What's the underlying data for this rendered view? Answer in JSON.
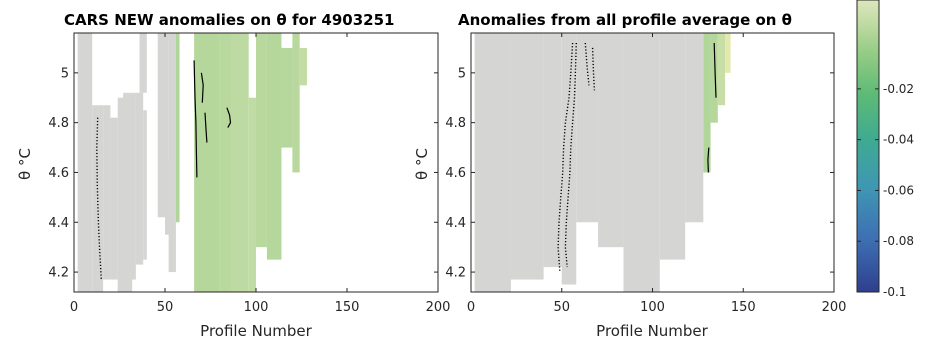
{
  "chart_data": [
    {
      "type": "heatmap",
      "title": "CARS NEW anomalies on θ for 4903251",
      "xlabel": "Profile Number",
      "ylabel": "θ °C",
      "xlim": [
        0,
        200
      ],
      "ylim": [
        4.12,
        5.16
      ],
      "xticks": [
        0,
        50,
        100,
        150,
        200
      ],
      "xtick_labels": [
        "0",
        "50",
        "100",
        "150",
        "200"
      ],
      "yticks": [
        4.2,
        4.4,
        4.6,
        4.8,
        5.0
      ],
      "ytick_labels": [
        "4.2",
        "4.4",
        "4.6",
        "4.8",
        "5"
      ],
      "grid": false,
      "bands": [
        {
          "x0": 2,
          "x1": 10,
          "ytop": 5.16,
          "ybot": 4.12,
          "value": 0.0
        },
        {
          "x0": 10,
          "x1": 16,
          "ytop": 4.87,
          "ybot": 4.12,
          "value": 0.0
        },
        {
          "x0": 16,
          "x1": 20,
          "ytop": 4.87,
          "ybot": 4.17,
          "value": 0.0
        },
        {
          "x0": 20,
          "x1": 24,
          "ytop": 4.82,
          "ybot": 4.17,
          "value": 0.0
        },
        {
          "x0": 24,
          "x1": 32,
          "ytop": 4.9,
          "ybot": 4.12,
          "value": 0.0
        },
        {
          "x0": 27,
          "x1": 34,
          "ytop": 4.92,
          "ybot": 4.17,
          "value": 0.0
        },
        {
          "x0": 34,
          "x1": 38,
          "ytop": 4.92,
          "ybot": 4.23,
          "value": 0.0
        },
        {
          "x0": 38,
          "x1": 40,
          "ytop": 4.85,
          "ybot": 4.25,
          "value": 0.0
        },
        {
          "x0": 36,
          "x1": 40,
          "ytop": 5.16,
          "ybot": 4.92,
          "value": 0.0
        },
        {
          "x0": 46,
          "x1": 52,
          "ytop": 5.16,
          "ybot": 4.42,
          "value": 0.0
        },
        {
          "x0": 50,
          "x1": 54,
          "ytop": 4.65,
          "ybot": 4.35,
          "value": 0.0
        },
        {
          "x0": 52,
          "x1": 56,
          "ytop": 5.16,
          "ybot": 4.2,
          "value": 0.0
        },
        {
          "x0": 56,
          "x1": 58,
          "ytop": 5.16,
          "ybot": 4.4,
          "value": 0.002
        },
        {
          "x0": 66,
          "x1": 80,
          "ytop": 5.16,
          "ybot": 4.12,
          "value": 0.003
        },
        {
          "x0": 80,
          "x1": 90,
          "ytop": 5.16,
          "ybot": 4.12,
          "value": 0.004
        },
        {
          "x0": 86,
          "x1": 96,
          "ytop": 5.16,
          "ybot": 4.12,
          "value": 0.005
        },
        {
          "x0": 96,
          "x1": 100,
          "ytop": 4.9,
          "ybot": 4.12,
          "value": 0.006
        },
        {
          "x0": 100,
          "x1": 106,
          "ytop": 5.16,
          "ybot": 4.3,
          "value": 0.004
        },
        {
          "x0": 106,
          "x1": 114,
          "ytop": 5.16,
          "ybot": 4.25,
          "value": 0.003
        },
        {
          "x0": 114,
          "x1": 120,
          "ytop": 5.1,
          "ybot": 4.7,
          "value": 0.003
        },
        {
          "x0": 120,
          "x1": 124,
          "ytop": 5.16,
          "ybot": 4.6,
          "value": 0.004
        },
        {
          "x0": 124,
          "x1": 128,
          "ytop": 5.1,
          "ybot": 4.95,
          "value": 0.007
        }
      ],
      "contours": [
        {
          "points": [
            [
              13,
              4.82
            ],
            [
              12.5,
              4.7
            ],
            [
              12.8,
              4.55
            ],
            [
              13.4,
              4.4
            ],
            [
              14,
              4.3
            ],
            [
              15,
              4.17
            ]
          ],
          "dotted": true
        },
        {
          "points": [
            [
              66,
              5.05
            ],
            [
              66.5,
              4.9
            ],
            [
              67,
              4.8
            ],
            [
              67.2,
              4.7
            ],
            [
              67.5,
              4.58
            ]
          ],
          "dotted": false
        },
        {
          "points": [
            [
              70,
              5.0
            ],
            [
              71,
              4.95
            ],
            [
              70.5,
              4.88
            ]
          ],
          "dotted": false
        },
        {
          "points": [
            [
              84,
              4.86
            ],
            [
              85.5,
              4.83
            ],
            [
              86,
              4.8
            ],
            [
              84.5,
              4.78
            ]
          ],
          "dotted": false
        },
        {
          "points": [
            [
              72,
              4.84
            ],
            [
              72.5,
              4.78
            ],
            [
              73,
              4.72
            ]
          ],
          "dotted": false
        }
      ]
    },
    {
      "type": "heatmap",
      "title": "Anomalies from all profile average on θ",
      "xlabel": "Profile Number",
      "ylabel": "θ °C",
      "xlim": [
        0,
        200
      ],
      "ylim": [
        4.12,
        5.16
      ],
      "xticks": [
        0,
        50,
        100,
        150,
        200
      ],
      "xtick_labels": [
        "0",
        "50",
        "100",
        "150",
        "200"
      ],
      "yticks": [
        4.2,
        4.4,
        4.6,
        4.8,
        5.0
      ],
      "ytick_labels": [
        "4.2",
        "4.4",
        "4.6",
        "4.8",
        "5"
      ],
      "grid": false,
      "bands": [
        {
          "x0": 2,
          "x1": 22,
          "ytop": 5.16,
          "ybot": 4.12,
          "value": 0.0
        },
        {
          "x0": 22,
          "x1": 40,
          "ytop": 5.16,
          "ybot": 4.17,
          "value": 0.0
        },
        {
          "x0": 40,
          "x1": 50,
          "ytop": 5.16,
          "ybot": 4.22,
          "value": 0.0
        },
        {
          "x0": 50,
          "x1": 58,
          "ytop": 5.16,
          "ybot": 4.15,
          "value": 0.0
        },
        {
          "x0": 58,
          "x1": 70,
          "ytop": 5.16,
          "ybot": 4.4,
          "value": 0.0
        },
        {
          "x0": 70,
          "x1": 84,
          "ytop": 5.16,
          "ybot": 4.3,
          "value": 0.0
        },
        {
          "x0": 84,
          "x1": 104,
          "ytop": 5.16,
          "ybot": 4.12,
          "value": 0.0
        },
        {
          "x0": 104,
          "x1": 118,
          "ytop": 5.16,
          "ybot": 4.25,
          "value": 0.0
        },
        {
          "x0": 118,
          "x1": 128,
          "ytop": 5.16,
          "ybot": 4.4,
          "value": 0.001
        },
        {
          "x0": 128,
          "x1": 132,
          "ytop": 5.16,
          "ybot": 4.6,
          "value": 0.002
        },
        {
          "x0": 132,
          "x1": 136,
          "ytop": 5.16,
          "ybot": 4.8,
          "value": 0.003
        },
        {
          "x0": 136,
          "x1": 140,
          "ytop": 5.16,
          "ybot": 4.87,
          "value": 0.008
        },
        {
          "x0": 140,
          "x1": 143,
          "ytop": 5.16,
          "ybot": 5.0,
          "value": 0.014
        }
      ],
      "contours": [
        {
          "points": [
            [
              56,
              5.12
            ],
            [
              55,
              5.0
            ],
            [
              54,
              4.9
            ],
            [
              52,
              4.8
            ],
            [
              51,
              4.7
            ],
            [
              50.5,
              4.6
            ],
            [
              49.5,
              4.5
            ],
            [
              48.5,
              4.4
            ],
            [
              48,
              4.3
            ],
            [
              49,
              4.2
            ]
          ],
          "dotted": true
        },
        {
          "points": [
            [
              58,
              5.12
            ],
            [
              57.5,
              5.0
            ],
            [
              57,
              4.9
            ],
            [
              56,
              4.8
            ],
            [
              55,
              4.7
            ],
            [
              54.5,
              4.6
            ],
            [
              53.5,
              4.5
            ],
            [
              52.5,
              4.4
            ],
            [
              52,
              4.3
            ],
            [
              53,
              4.22
            ]
          ],
          "dotted": true
        },
        {
          "points": [
            [
              63,
              5.12
            ],
            [
              64,
              5.02
            ],
            [
              65,
              4.95
            ]
          ],
          "dotted": true
        },
        {
          "points": [
            [
              67,
              5.1
            ],
            [
              67.5,
              5.0
            ],
            [
              68,
              4.93
            ]
          ],
          "dotted": true
        },
        {
          "points": [
            [
              134,
              5.12
            ],
            [
              134.5,
              5.0
            ],
            [
              135,
              4.9
            ]
          ],
          "dotted": false
        },
        {
          "points": [
            [
              131,
              4.7
            ],
            [
              130.5,
              4.65
            ],
            [
              130.8,
              4.6
            ]
          ],
          "dotted": false
        }
      ]
    }
  ],
  "colorbar": {
    "ticks": [
      -0.02,
      -0.04,
      -0.06,
      -0.08,
      -0.1
    ],
    "tick_labels": [
      "-0.02",
      "-0.04",
      "-0.06",
      "-0.08",
      "-0.1"
    ],
    "range": [
      -0.1,
      0.015
    ],
    "colors": [
      "#2e3f8f",
      "#3e6fb3",
      "#3f97b3",
      "#3faa92",
      "#5ebb76",
      "#95cc85",
      "#c3dca6",
      "#dde7bd"
    ]
  }
}
